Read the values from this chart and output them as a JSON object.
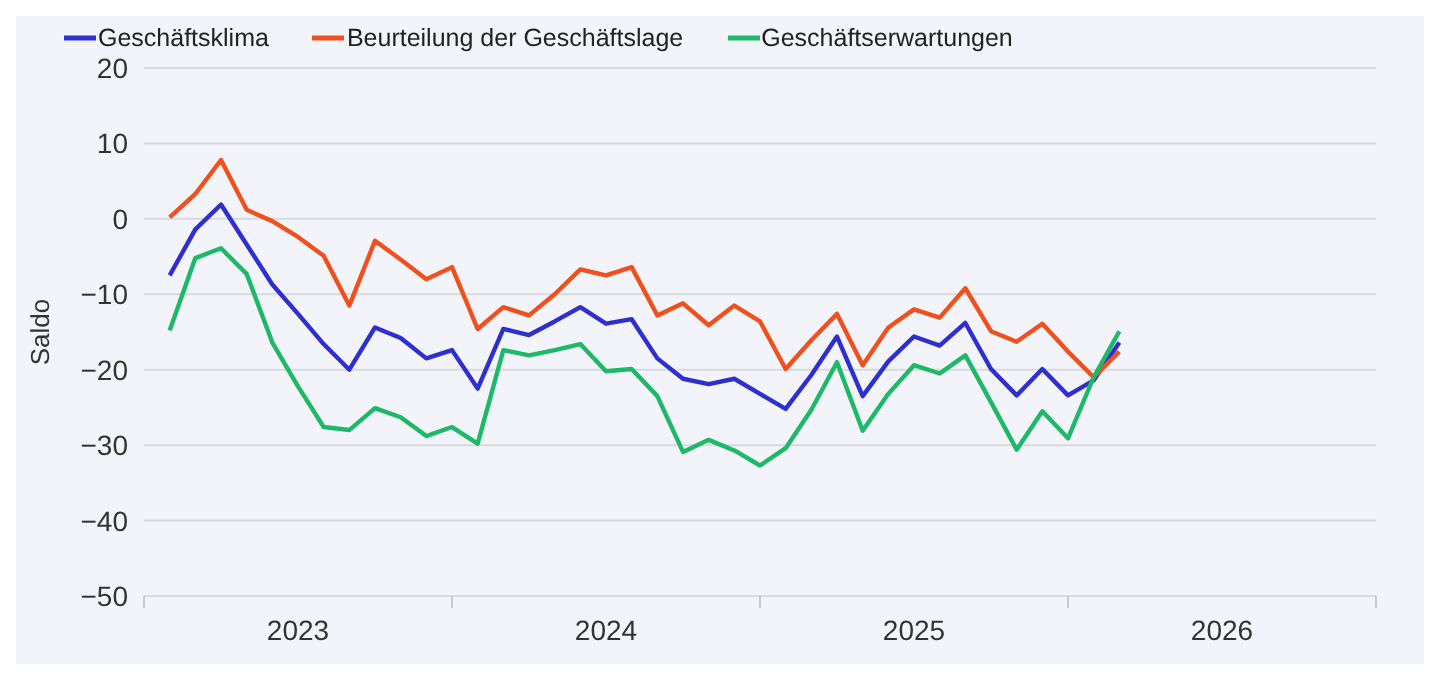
{
  "chart_data": {
    "type": "line",
    "ylabel": "Saldo",
    "legend": "top left",
    "grid": "y",
    "marker": "none",
    "line_style": "solid",
    "x": [
      "2023-02",
      "2023-03",
      "2023-04",
      "2023-05",
      "2023-06",
      "2023-07",
      "2023-08",
      "2023-09",
      "2023-10",
      "2023-11",
      "2023-12",
      "2024-01",
      "2024-02",
      "2024-03",
      "2024-04",
      "2024-05",
      "2024-06",
      "2024-07",
      "2024-08",
      "2024-09",
      "2024-10",
      "2024-11",
      "2024-12",
      "2025-01",
      "2025-02",
      "2025-03",
      "2025-04",
      "2025-05",
      "2025-06",
      "2025-07",
      "2025-08",
      "2025-09",
      "2025-10",
      "2025-11",
      "2025-12",
      "2026-01",
      "2026-02",
      "2026-03"
    ],
    "xlim": [
      "2023-01",
      "2027-01"
    ],
    "xticks": [
      {
        "value": "2023-01",
        "label": null
      },
      {
        "value": "2023-07",
        "label": "2023"
      },
      {
        "value": "2024-01",
        "label": null
      },
      {
        "value": "2024-07",
        "label": "2024"
      },
      {
        "value": "2025-01",
        "label": null
      },
      {
        "value": "2025-07",
        "label": "2025"
      },
      {
        "value": "2026-01",
        "label": null
      },
      {
        "value": "2026-07",
        "label": "2026"
      },
      {
        "value": "2027-01",
        "label": null
      }
    ],
    "ylim": [
      -50,
      20
    ],
    "yticks": [
      -50,
      -40,
      -30,
      -20,
      -10,
      0,
      10,
      20
    ],
    "series": [
      {
        "name": "Geschäftsklima",
        "color": "#2f2fd0",
        "values": [
          -7.5,
          -1.4,
          1.9,
          -3.4,
          -8.7,
          -12.6,
          -16.6,
          -20.0,
          -14.4,
          -15.8,
          -18.5,
          -17.4,
          -22.5,
          -14.6,
          -15.4,
          -13.6,
          -11.7,
          -13.9,
          -13.3,
          -18.5,
          -21.2,
          -21.9,
          -21.2,
          -23.2,
          -25.2,
          -20.7,
          -15.6,
          -23.5,
          -18.9,
          -15.6,
          -16.8,
          -13.8,
          -19.9,
          -23.4,
          -19.9,
          -23.4,
          -21.4,
          -16.4
        ]
      },
      {
        "name": "Beurteilung der Geschäftslage",
        "color": "#f0501e",
        "values": [
          0.2,
          3.3,
          7.8,
          1.2,
          -0.3,
          -2.4,
          -4.9,
          -11.5,
          -2.9,
          -5.4,
          -8.0,
          -6.4,
          -14.6,
          -11.7,
          -12.8,
          -10.0,
          -6.7,
          -7.5,
          -6.4,
          -12.8,
          -11.2,
          -14.1,
          -11.5,
          -13.6,
          -19.9,
          -16.1,
          -12.6,
          -19.4,
          -14.4,
          -12.0,
          -13.1,
          -9.2,
          -14.9,
          -16.3,
          -13.9,
          -17.6,
          -21.0,
          -17.6
        ]
      },
      {
        "name": "Geschäftserwartungen",
        "color": "#1db868",
        "values": [
          -14.8,
          -5.2,
          -3.9,
          -7.3,
          -16.4,
          -22.2,
          -27.6,
          -28.0,
          -25.1,
          -26.3,
          -28.8,
          -27.6,
          -29.8,
          -17.4,
          -18.1,
          -17.4,
          -16.6,
          -20.2,
          -19.9,
          -23.5,
          -30.9,
          -29.3,
          -30.7,
          -32.7,
          -30.4,
          -25.3,
          -19.0,
          -28.1,
          -23.2,
          -19.4,
          -20.5,
          -18.1,
          -24.3,
          -30.6,
          -25.5,
          -29.1,
          -21.0,
          -14.9
        ]
      }
    ]
  }
}
